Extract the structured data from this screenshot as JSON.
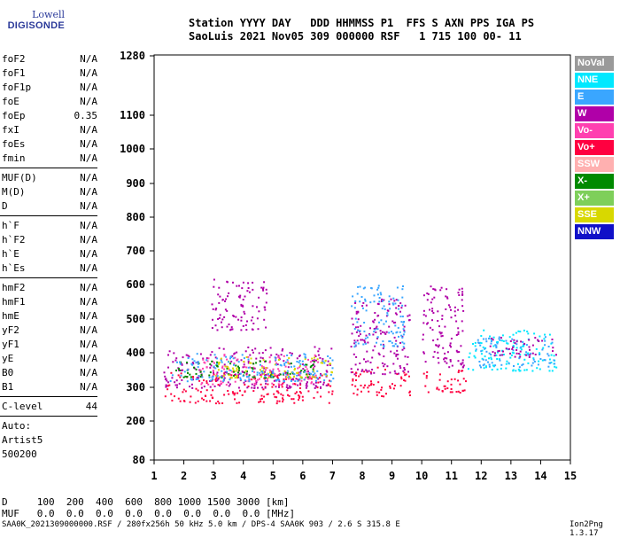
{
  "logo": {
    "line1": "Lowell",
    "line2": "DIGISONDE"
  },
  "header": {
    "line1": "Station YYYY DAY   DDD HHMMSS P1  FFS S AXN PPS IGA PS",
    "line2": "SaoLuis 2021 Nov05 309 000000 RSF   1 715 100 00- 11"
  },
  "params_group1": [
    {
      "name": "foF2",
      "value": "N/A"
    },
    {
      "name": "foF1",
      "value": "N/A"
    },
    {
      "name": "foF1p",
      "value": "N/A"
    },
    {
      "name": "foE",
      "value": "N/A"
    },
    {
      "name": "foEp",
      "value": "0.35"
    },
    {
      "name": "fxI",
      "value": "N/A"
    },
    {
      "name": "foEs",
      "value": "N/A"
    },
    {
      "name": "fmin",
      "value": "N/A"
    }
  ],
  "params_group2": [
    {
      "name": "MUF(D)",
      "value": "N/A"
    },
    {
      "name": "M(D)",
      "value": "N/A"
    },
    {
      "name": "D",
      "value": "N/A"
    }
  ],
  "params_group3": [
    {
      "name": "h`F",
      "value": "N/A"
    },
    {
      "name": "h`F2",
      "value": "N/A"
    },
    {
      "name": "h`E",
      "value": "N/A"
    },
    {
      "name": "h`Es",
      "value": "N/A"
    }
  ],
  "params_group4": [
    {
      "name": "hmF2",
      "value": "N/A"
    },
    {
      "name": "hmF1",
      "value": "N/A"
    },
    {
      "name": "hmE",
      "value": "N/A"
    },
    {
      "name": "yF2",
      "value": "N/A"
    },
    {
      "name": "yF1",
      "value": "N/A"
    },
    {
      "name": "yE",
      "value": "N/A"
    },
    {
      "name": "B0",
      "value": "N/A"
    },
    {
      "name": "B1",
      "value": "N/A"
    }
  ],
  "clevel": {
    "name": "C-level",
    "value": "44"
  },
  "autoscale": {
    "line1": "Auto:",
    "line2": "Artist5",
    "line3": "500200"
  },
  "legend": [
    {
      "label": "NoVal",
      "color": "#9a9a9a"
    },
    {
      "label": "NNE",
      "color": "#00e8ff"
    },
    {
      "label": "E",
      "color": "#3aa6ff"
    },
    {
      "label": "W",
      "color": "#b000a8"
    },
    {
      "label": "Vo-",
      "color": "#ff40b0"
    },
    {
      "label": "Vo+",
      "color": "#ff0040"
    },
    {
      "label": "SSW",
      "color": "#ffb0b0"
    },
    {
      "label": "X-",
      "color": "#008a00"
    },
    {
      "label": "X+",
      "color": "#7ecf5a"
    },
    {
      "label": "SSE",
      "color": "#d8d800"
    },
    {
      "label": "NNW",
      "color": "#1010c8"
    }
  ],
  "footer": {
    "d_line": "D     100  200  400  600  800 1000 1500 3000 [km]",
    "muf_line": "MUF   0.0  0.0  0.0  0.0  0.0  0.0  0.0  0.0 [MHz]",
    "file_line": "SAA0K_2021309000000.RSF / 280fx256h 50 kHz 5.0 km / DPS-4 SAA0K 903 / 2.6 S 315.8 E",
    "version": "Ion2Png 1.3.17"
  },
  "chart_data": {
    "type": "scatter",
    "x_ticks": [
      1,
      2,
      3,
      4,
      5,
      6,
      7,
      8,
      9,
      10,
      11,
      12,
      13,
      14,
      15
    ],
    "y_ticks": [
      80,
      200,
      300,
      400,
      500,
      600,
      700,
      800,
      900,
      1000,
      1100,
      1280
    ],
    "xlim": [
      1,
      15
    ],
    "ylim": [
      80,
      1280
    ],
    "y_scale": "nonlinear (ionogram virtual height)",
    "grid": false,
    "clusters": [
      {
        "mode": "Vo+",
        "f_range": [
          1.3,
          7.0
        ],
        "h_range": [
          255,
          345
        ]
      },
      {
        "mode": "W",
        "f_range": [
          1.3,
          7.0
        ],
        "h_range": [
          300,
          420
        ]
      },
      {
        "mode": "Vo-",
        "f_range": [
          2.5,
          6.5
        ],
        "h_range": [
          310,
          400
        ]
      },
      {
        "mode": "X-",
        "f_range": [
          1.7,
          6.5
        ],
        "h_range": [
          330,
          380
        ]
      },
      {
        "mode": "SSE",
        "f_range": [
          3.0,
          7.0
        ],
        "h_range": [
          330,
          390
        ]
      },
      {
        "mode": "E",
        "f_range": [
          1.5,
          7.0
        ],
        "h_range": [
          320,
          400
        ]
      },
      {
        "mode": "W",
        "f_range": [
          2.9,
          4.8
        ],
        "h_range": [
          470,
          620
        ]
      },
      {
        "mode": "Vo+",
        "f_range": [
          7.6,
          9.6
        ],
        "h_range": [
          275,
          360
        ]
      },
      {
        "mode": "W",
        "f_range": [
          7.6,
          9.6
        ],
        "h_range": [
          340,
          560
        ]
      },
      {
        "mode": "E",
        "f_range": [
          7.6,
          9.4
        ],
        "h_range": [
          420,
          600
        ]
      },
      {
        "mode": "Vo+",
        "f_range": [
          10.0,
          11.5
        ],
        "h_range": [
          285,
          360
        ]
      },
      {
        "mode": "W",
        "f_range": [
          10.0,
          11.4
        ],
        "h_range": [
          360,
          600
        ]
      },
      {
        "mode": "NNE",
        "f_range": [
          11.5,
          14.5
        ],
        "h_range": [
          350,
          470
        ]
      },
      {
        "mode": "E",
        "f_range": [
          11.8,
          14.5
        ],
        "h_range": [
          360,
          450
        ]
      },
      {
        "mode": "W",
        "f_range": [
          12.2,
          14.5
        ],
        "h_range": [
          390,
          450
        ]
      }
    ]
  }
}
